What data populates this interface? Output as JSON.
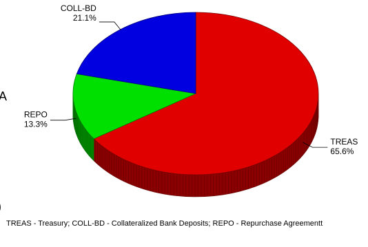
{
  "chart_data": {
    "type": "pie",
    "style": "3d",
    "slices": [
      {
        "label": "TREAS",
        "percent_label": "65.6%",
        "value": 65.6,
        "color": "#e00000"
      },
      {
        "label": "REPO",
        "percent_label": "13.3%",
        "value": 13.3,
        "color": "#00e000"
      },
      {
        "label": "COLL-BD",
        "percent_label": "21.1%",
        "value": 21.1,
        "color": "#0000e0"
      }
    ]
  },
  "edge_fragments": {
    "left_letter": "A",
    "left_paren": ")"
  },
  "footnote": "TREAS - Treasury; COLL-BD - Collateralized Bank Deposits; REPO - Repurchase Agreementt"
}
